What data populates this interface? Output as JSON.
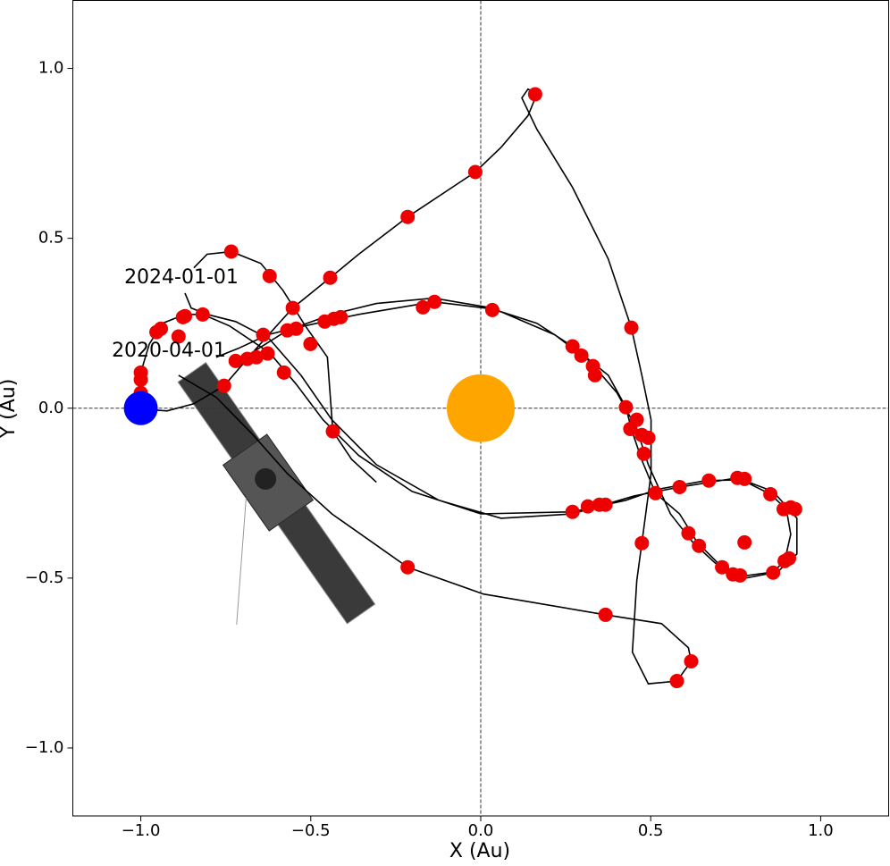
{
  "chart_data": {
    "type": "line",
    "xlabel": "X (Au)",
    "ylabel": "Y (Au)",
    "xlim": [
      -1.2,
      1.2
    ],
    "ylim": [
      -1.2,
      1.2
    ],
    "xticks": [
      {
        "value": -1.0,
        "label": "−1.0"
      },
      {
        "value": -0.5,
        "label": "−0.5"
      },
      {
        "value": 0.0,
        "label": "0.0"
      },
      {
        "value": 0.5,
        "label": "0.5"
      },
      {
        "value": 1.0,
        "label": "1.0"
      }
    ],
    "yticks": [
      {
        "value": -1.0,
        "label": "−1.0"
      },
      {
        "value": -0.5,
        "label": "−0.5"
      },
      {
        "value": 0.0,
        "label": "0.0"
      },
      {
        "value": 0.5,
        "label": "0.5"
      },
      {
        "value": 1.0,
        "label": "1.0"
      }
    ],
    "zero_lines": true,
    "annotations": [
      "2024-01-01",
      "2020-04-01"
    ],
    "trajectory": {
      "color": "#000000",
      "x": [
        -0.889,
        -0.778,
        -0.674,
        -0.569,
        -0.438,
        -0.215,
        0.008,
        0.367,
        0.532,
        0.611,
        0.619,
        0.577,
        0.493,
        0.446,
        0.459,
        0.474,
        0.501,
        0.501,
        0.474,
        0.443,
        0.375,
        0.27,
        0.165,
        0.121,
        0.139,
        0.165,
        0.139,
        0.06,
        -0.016,
        -0.215,
        -0.359,
        -0.443,
        -0.553,
        -0.66,
        -0.755,
        -0.844,
        -0.923,
        -0.988,
        null,
        -1.0,
        -1.0,
        -0.975,
        -0.936,
        -0.87,
        -0.818,
        -0.739,
        -0.621,
        -0.543,
        -0.464,
        -0.359,
        -0.202,
        0.0,
        0.27,
        0.427,
        0.519,
        0.663,
        0.768,
        0.852,
        0.899,
        0.912,
        0.894,
        0.86,
        0.763,
        0.71,
        0.637,
        0.585,
        0.514,
        0.474,
        0.443,
        0.427,
        0.375,
        0.27,
        0.165,
        0.034,
        -0.139,
        -0.359,
        -0.459,
        -0.556,
        -0.627,
        -0.713,
        -0.778,
        null,
        -0.87,
        -0.852,
        -0.805,
        -0.721,
        -0.621,
        -0.529,
        -0.438,
        -0.307,
        -0.123,
        0.06,
        0.27,
        0.453,
        0.585,
        0.755,
        0.86,
        0.93,
        0.93,
        0.873,
        0.763,
        0.689,
        0.624,
        0.558,
        0.493,
        0.459,
        0.401,
        0.322,
        0.218,
        0.034,
        -0.139,
        -0.307,
        -0.438,
        -0.569,
        -0.674,
        -0.721,
        null,
        -0.844,
        -0.805,
        -0.734,
        -0.647,
        -0.582,
        -0.516,
        -0.451,
        -0.435,
        -0.38,
        -0.307
      ],
      "y": [
        0.097,
        0.032,
        -0.074,
        -0.192,
        -0.311,
        -0.468,
        -0.547,
        -0.608,
        -0.634,
        -0.705,
        -0.745,
        -0.803,
        -0.811,
        -0.718,
        -0.508,
        -0.397,
        -0.192,
        -0.034,
        0.097,
        0.237,
        0.439,
        0.65,
        0.821,
        0.913,
        0.939,
        0.924,
        0.861,
        0.768,
        0.695,
        0.563,
        0.453,
        0.384,
        0.295,
        0.176,
        0.066,
        0.013,
        -0.008,
        -0.003,
        null,
        0.045,
        0.105,
        0.189,
        0.25,
        0.276,
        0.276,
        0.242,
        0.163,
        0.071,
        -0.034,
        -0.139,
        -0.245,
        -0.311,
        -0.305,
        -0.271,
        -0.239,
        -0.213,
        -0.211,
        -0.253,
        -0.297,
        -0.371,
        -0.45,
        -0.482,
        -0.495,
        -0.468,
        -0.395,
        -0.311,
        -0.25,
        -0.153,
        -0.061,
        0.003,
        0.097,
        0.182,
        0.25,
        0.292,
        0.313,
        0.276,
        0.255,
        0.234,
        0.216,
        0.176,
        0.15,
        null,
        0.339,
        0.295,
        0.276,
        0.255,
        0.203,
        0.097,
        -0.034,
        -0.166,
        -0.271,
        -0.324,
        -0.311,
        -0.258,
        -0.232,
        -0.205,
        -0.245,
        -0.324,
        -0.429,
        -0.482,
        -0.503,
        -0.455,
        -0.395,
        -0.311,
        -0.166,
        -0.061,
        0.045,
        0.137,
        0.216,
        0.295,
        0.324,
        0.308,
        0.276,
        0.229,
        0.163,
        0.139,
        null,
        0.413,
        0.453,
        0.461,
        0.426,
        0.347,
        0.242,
        0.15,
        -0.068,
        -0.15,
        -0.218
      ]
    },
    "positions": {
      "color": "#ee0000",
      "x": [
        -1.0,
        -1.0,
        -1.0,
        -0.954,
        -0.941,
        -0.889,
        -0.87,
        -0.818,
        -0.876,
        -0.734,
        -0.621,
        -0.553,
        -0.443,
        -0.215,
        -0.016,
        0.16,
        -0.501,
        -0.579,
        -0.755,
        -0.721,
        -0.687,
        -0.66,
        -0.627,
        -0.64,
        -0.569,
        -0.543,
        -0.459,
        -0.432,
        -0.412,
        -0.17,
        -0.136,
        0.034,
        0.27,
        0.296,
        0.33,
        0.336,
        0.443,
        0.427,
        0.459,
        0.44,
        0.474,
        0.493,
        0.48,
        0.514,
        0.585,
        0.671,
        0.755,
        0.776,
        0.852,
        0.891,
        0.912,
        0.925,
        0.894,
        0.907,
        0.86,
        0.763,
        0.742,
        0.71,
        0.776,
        0.611,
        0.642,
        0.474,
        0.27,
        0.315,
        0.349,
        0.367,
        -0.215,
        0.367,
        0.619,
        0.577,
        -0.435
      ],
      "y": [
        0.105,
        0.084,
        0.045,
        0.224,
        0.234,
        0.211,
        0.271,
        0.276,
        0.268,
        0.461,
        0.389,
        0.295,
        0.384,
        0.563,
        0.695,
        0.924,
        0.189,
        0.105,
        0.066,
        0.139,
        0.145,
        0.15,
        0.161,
        0.216,
        0.229,
        0.234,
        0.255,
        0.263,
        0.268,
        0.297,
        0.313,
        0.289,
        0.182,
        0.155,
        0.124,
        0.097,
        0.237,
        0.003,
        -0.034,
        -0.061,
        -0.079,
        -0.087,
        -0.134,
        -0.25,
        -0.232,
        -0.213,
        -0.205,
        -0.208,
        -0.253,
        -0.297,
        -0.292,
        -0.297,
        -0.45,
        -0.442,
        -0.484,
        -0.492,
        -0.489,
        -0.468,
        -0.395,
        -0.368,
        -0.405,
        -0.397,
        -0.305,
        -0.289,
        -0.284,
        -0.284,
        -0.468,
        -0.608,
        -0.745,
        -0.803,
        -0.068
      ]
    },
    "earth": {
      "color": "#0000ff",
      "x": [
        -1.0
      ],
      "y": [
        0.0
      ]
    },
    "sun": {
      "color": "#ffa500",
      "x": [
        0.0
      ],
      "y": [
        0.0
      ]
    }
  }
}
